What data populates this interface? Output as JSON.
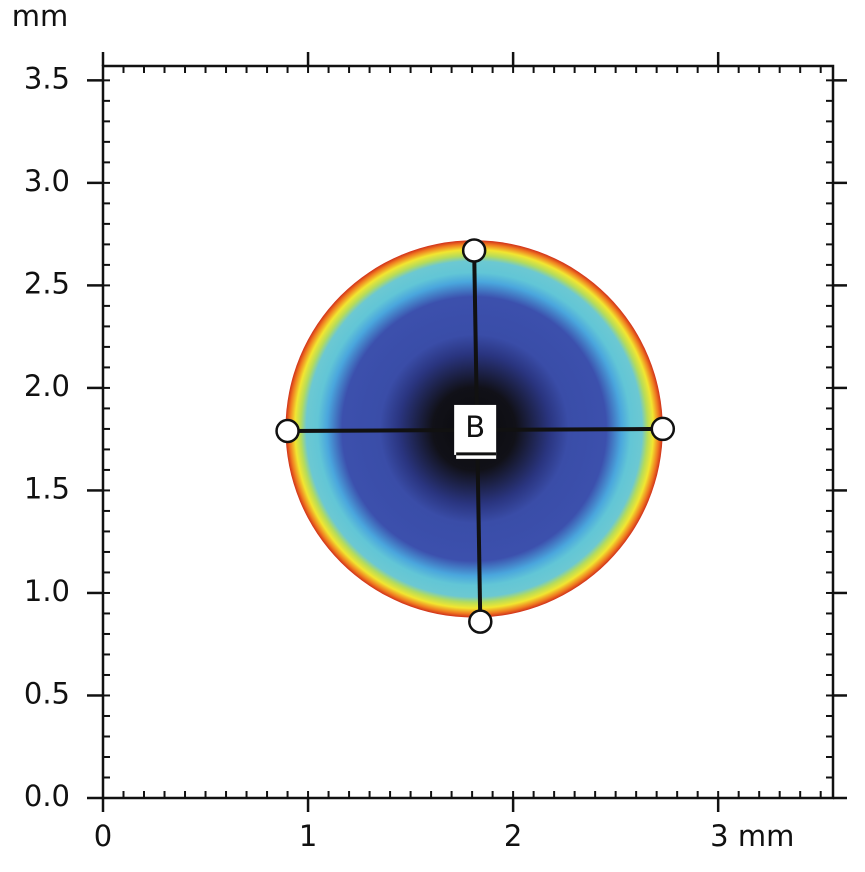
{
  "chart_data": {
    "type": "spot",
    "y_axis_unit": "mm",
    "xlim": [
      0,
      3.56
    ],
    "ylim": [
      0,
      3.57
    ],
    "xticks": [
      0,
      1,
      2,
      {
        "value": 3,
        "label": "3 mm"
      }
    ],
    "yticks": [
      {
        "value": 0,
        "label": "0.0"
      },
      0.5,
      {
        "value": 1,
        "label": "1.0"
      },
      1.5,
      {
        "value": 2,
        "label": "2.0"
      },
      2.5,
      {
        "value": 3,
        "label": "3.0"
      },
      3.5
    ],
    "minor_step": 0.1,
    "spot": {
      "center_x": 1.81,
      "center_y": 1.8,
      "radius": 0.92
    },
    "label": "B",
    "points": {
      "x": [
        1.81,
        1.84,
        0.9,
        2.73
      ],
      "y": [
        2.67,
        0.86,
        1.79,
        1.8
      ]
    }
  }
}
